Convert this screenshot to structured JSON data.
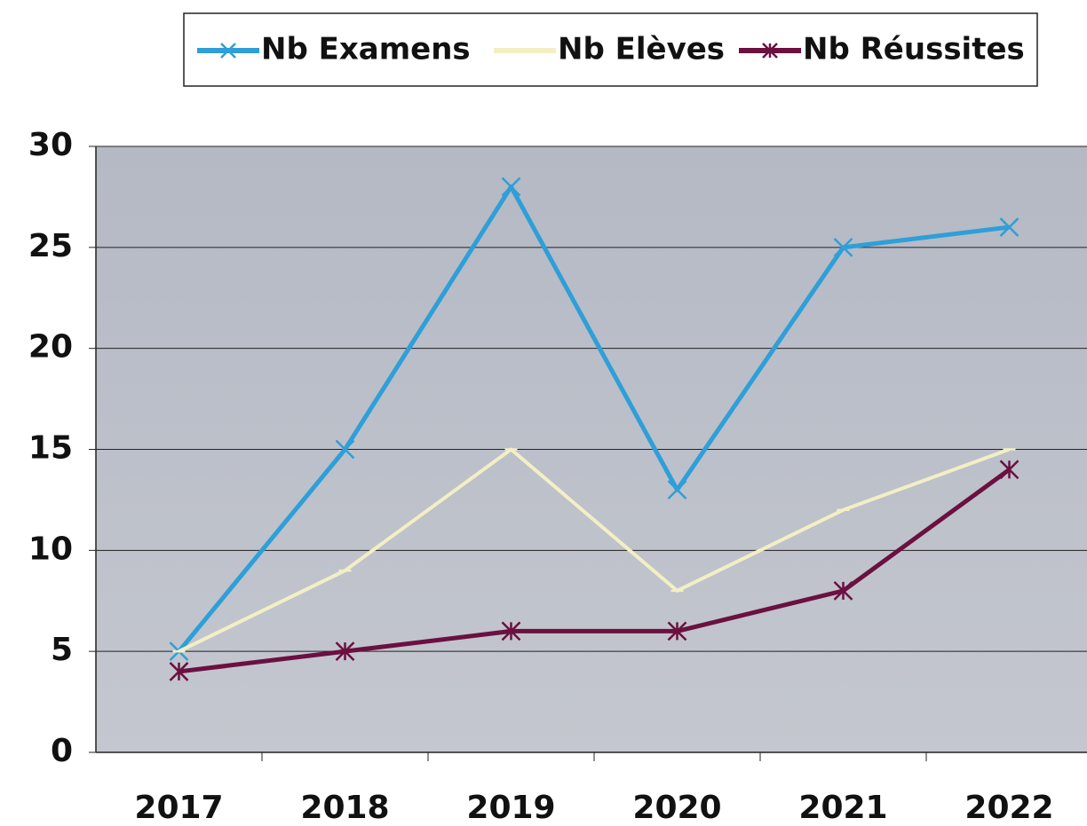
{
  "chart_data": {
    "type": "line",
    "categories": [
      "2017",
      "2018",
      "2019",
      "2020",
      "2021",
      "2022"
    ],
    "series": [
      {
        "name": "Nb Examens",
        "color": "#2e9fd8",
        "values": [
          5,
          15,
          28,
          13,
          25,
          26
        ]
      },
      {
        "name": "Nb Elèves",
        "color": "#f3efc4",
        "values": [
          5,
          9,
          15,
          8,
          12,
          15
        ]
      },
      {
        "name": "Nb Réussites",
        "color": "#6b1040",
        "values": [
          4,
          5,
          6,
          6,
          8,
          14
        ]
      }
    ],
    "ylim": [
      0,
      30
    ],
    "yticks": [
      0,
      5,
      10,
      15,
      20,
      25,
      30
    ],
    "grid": true,
    "legend": "top"
  }
}
